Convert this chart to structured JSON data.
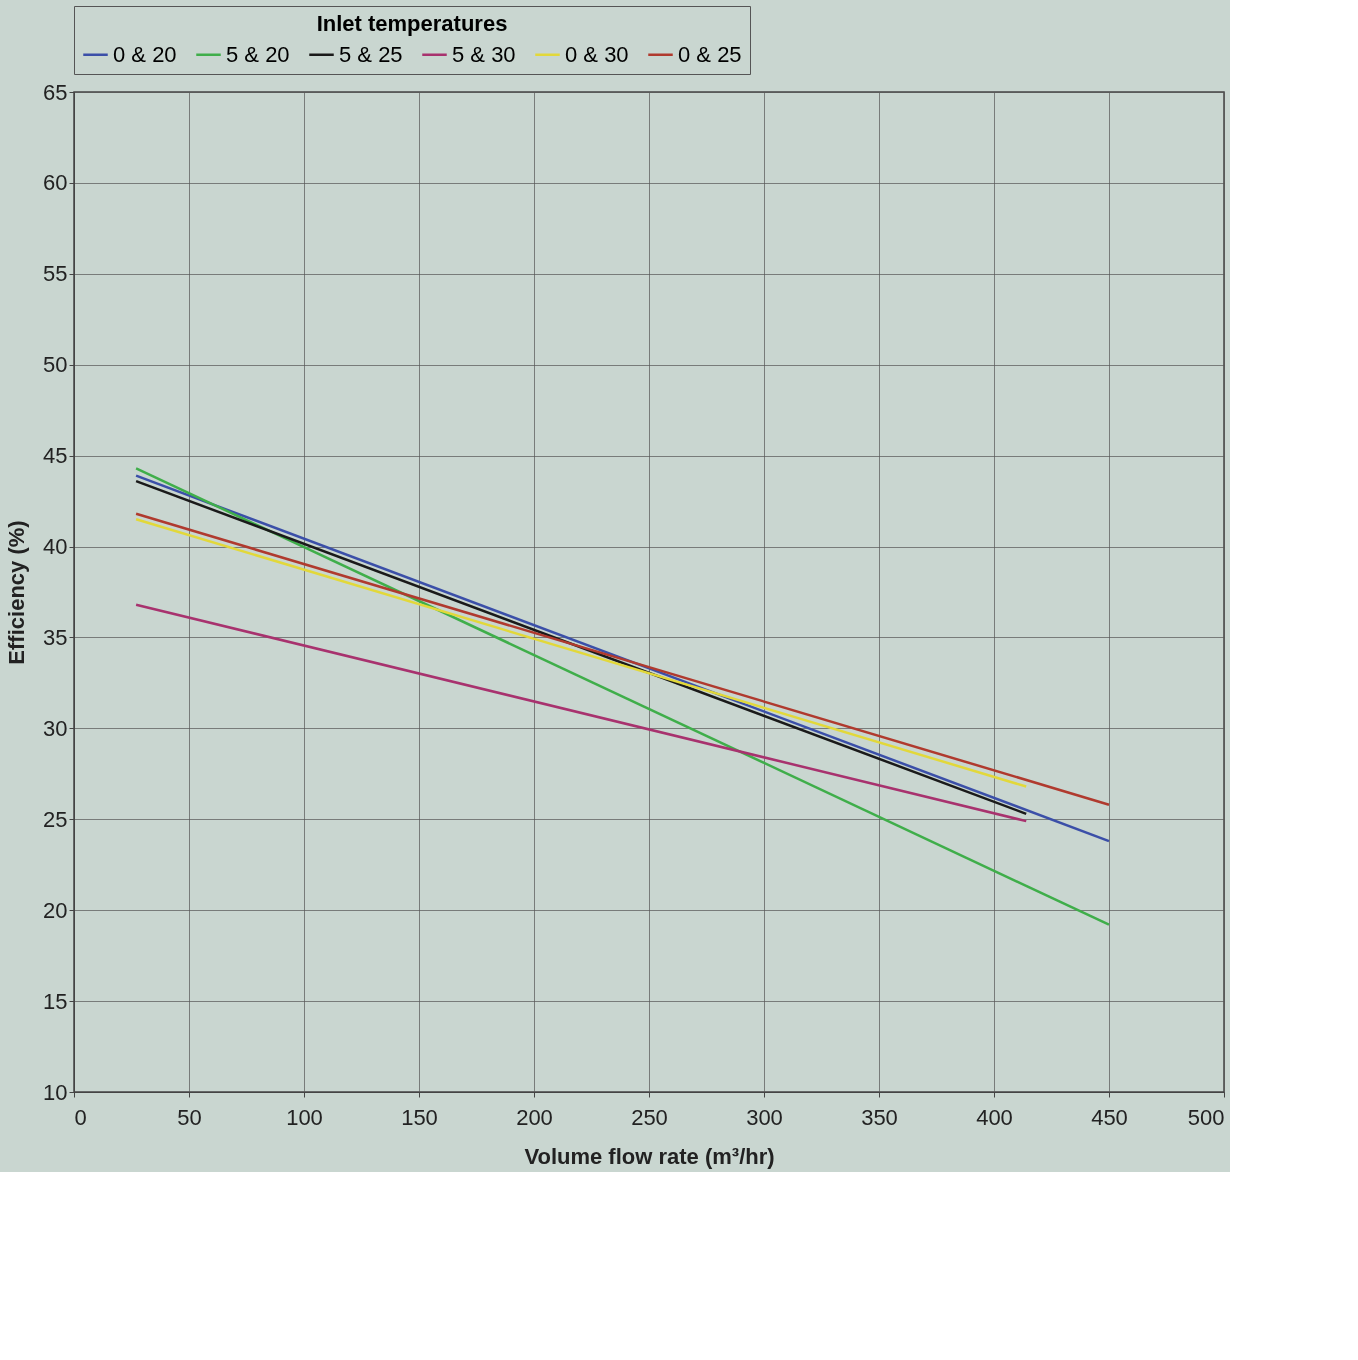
{
  "chart_data": {
    "type": "line",
    "legend_title": "Inlet temperatures",
    "xlabel": "Volume flow rate (m³/hr)",
    "ylabel": "Efficiency (%)",
    "xlim": [
      0,
      500
    ],
    "xticks": [
      0,
      50,
      100,
      150,
      200,
      250,
      300,
      350,
      400,
      450,
      500
    ],
    "ylim": [
      10,
      65
    ],
    "yticks": [
      10,
      15,
      20,
      25,
      30,
      35,
      40,
      45,
      50,
      55,
      60,
      65
    ],
    "grid": true,
    "legend": "top",
    "marker": "none",
    "line_style": "solid",
    "series": [
      {
        "name": "0 & 20",
        "color": "#3b4fa8",
        "x": [
          27,
          450
        ],
        "values": [
          43.9,
          23.8
        ]
      },
      {
        "name": "5 & 20",
        "color": "#3fae4a",
        "x": [
          27,
          450
        ],
        "values": [
          44.3,
          19.2
        ]
      },
      {
        "name": "5 & 25",
        "color": "#1a1a1a",
        "x": [
          27,
          414
        ],
        "values": [
          43.6,
          25.3
        ]
      },
      {
        "name": "5 & 30",
        "color": "#a8326e",
        "x": [
          27,
          414
        ],
        "values": [
          36.8,
          24.9
        ]
      },
      {
        "name": "0 & 30",
        "color": "#e2d83a",
        "x": [
          27,
          414
        ],
        "values": [
          41.5,
          26.8
        ]
      },
      {
        "name": "0 & 25",
        "color": "#b03a2e",
        "x": [
          27,
          450
        ],
        "values": [
          41.8,
          25.8
        ]
      }
    ]
  }
}
